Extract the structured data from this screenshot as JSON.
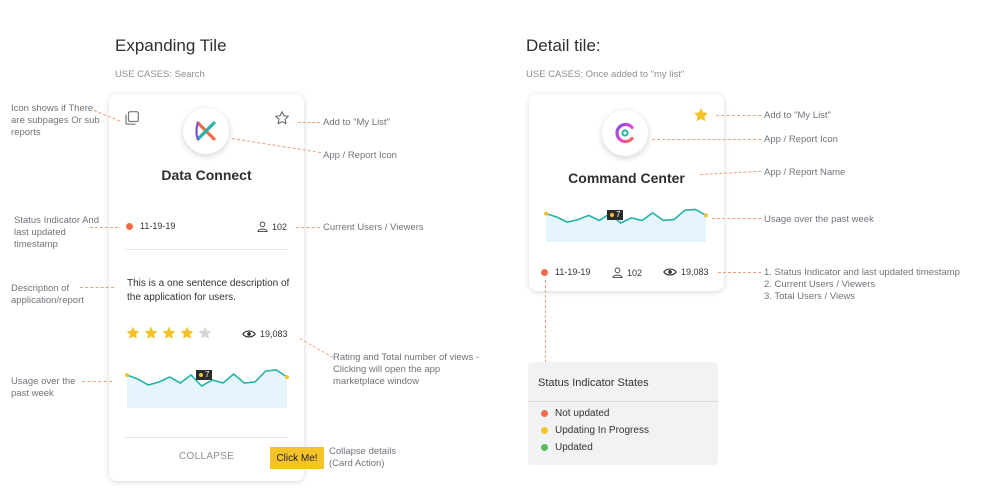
{
  "left": {
    "heading": "Expanding Tile",
    "usecase": "USE CASES: Search",
    "card": {
      "title": "Data Connect",
      "date": "11-19-19",
      "users": "102",
      "description": "This is a one sentence description of the application for users.",
      "rating": 4,
      "rating_max": 5,
      "views": "19,083",
      "tooltip_value": "7",
      "collapse_label": "COLLAPSE",
      "click_label": "Click Me!",
      "sparkline": [
        62,
        54,
        42,
        48,
        58,
        46,
        62,
        40,
        52,
        46,
        64,
        46,
        48,
        70,
        72,
        58
      ]
    },
    "annotations": {
      "subpages": "Icon shows if There are subpages Or sub reports",
      "my_list": "Add to \"My List\"",
      "app_icon": "App / Report Icon",
      "status": "Status Indicator And last updated timestamp",
      "users": "Current Users / Viewers",
      "description": "Description of application/report",
      "rating": "Rating and Total number of views - Clicking will open the app marketplace window",
      "usage": "Usage over the past week",
      "collapse": "Collapse details (Card Action)"
    }
  },
  "right": {
    "heading": "Detail tile:",
    "usecase": "USE CASES: Once added to \"my list\"",
    "card": {
      "title": "Command Center",
      "date": "11-19-19",
      "users": "102",
      "views": "19,083",
      "tooltip_value": "7",
      "sparkline": [
        62,
        54,
        42,
        48,
        58,
        46,
        62,
        40,
        52,
        46,
        64,
        46,
        48,
        70,
        72,
        58
      ]
    },
    "annotations": {
      "my_list": "Add to \"My List\"",
      "app_icon": "App / Report Icon",
      "app_name": "App / Report Name",
      "usage": "Usage over the past week",
      "meta_list": [
        "1. Status Indicator and last updated timestamp",
        "2. Current Users / Viewers",
        "3. Total Users / Views"
      ]
    },
    "legend": {
      "title": "Status Indicator States",
      "items": [
        {
          "label": "Not updated",
          "color": "#f26b4a"
        },
        {
          "label": "Updating In Progress",
          "color": "#f6c22a"
        },
        {
          "label": "Updated",
          "color": "#5cb85c"
        }
      ]
    }
  },
  "colors": {
    "status_dot": "#f26b4a",
    "star": "#f6c22a",
    "star_empty": "#d6d6d6",
    "sparkline": "#24b3a6",
    "sparkline_fill": "#e6f5fb",
    "highlight": "#f6c22a"
  },
  "icons": {
    "subpages": "copy-icon",
    "favorite_empty": "star-outline-icon",
    "favorite_filled": "star-filled-icon",
    "users": "user-icon",
    "views": "eye-icon"
  }
}
